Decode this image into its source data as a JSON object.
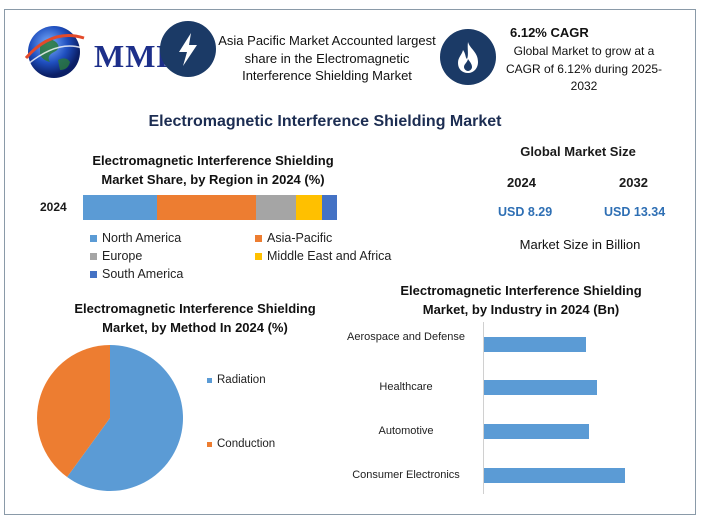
{
  "brand": {
    "logo_text": "MMR"
  },
  "highlights": {
    "region_text": "Asia Pacific Market Accounted largest share in the Electromagnetic Interference Shielding Market",
    "cagr_title": "6.12% CAGR",
    "cagr_text": "Global Market to grow at a CAGR of 6.12% during 2025-2032"
  },
  "main_title": "Electromagnetic Interference Shielding Market",
  "global_market": {
    "title": "Global Market Size",
    "year_a": "2024",
    "year_b": "2032",
    "value_a": "USD 8.29",
    "value_b": "USD 13.34",
    "note": "Market Size in Billion"
  },
  "colors": {
    "blue": "#5b9bd5",
    "orange": "#ed7d31",
    "gray": "#a5a5a5",
    "yellow": "#ffc000",
    "dark_blue": "#4472c4",
    "icon_bg": "#1b3a66"
  },
  "icons": [
    "globe-icon",
    "lightning-icon",
    "flame-icon"
  ],
  "chart_data": [
    {
      "type": "bar",
      "stacked": true,
      "orientation": "horizontal",
      "title": "Electromagnetic Interference Shielding Market Share, by Region in 2024 (%)",
      "categories": [
        "2024"
      ],
      "series": [
        {
          "name": "North America",
          "values": [
            29
          ],
          "color": "#5b9bd5"
        },
        {
          "name": "Asia-Pacific",
          "values": [
            39
          ],
          "color": "#ed7d31"
        },
        {
          "name": "Europe",
          "values": [
            16
          ],
          "color": "#a5a5a5"
        },
        {
          "name": "Middle East and Africa",
          "values": [
            10
          ],
          "color": "#ffc000"
        },
        {
          "name": "South America",
          "values": [
            6
          ],
          "color": "#4472c4"
        }
      ],
      "legend_placement": "bottom"
    },
    {
      "type": "pie",
      "title": "Electromagnetic Interference Shielding Market, by Method In 2024 (%)",
      "labels": [
        "Radiation",
        "Conduction"
      ],
      "values": [
        60,
        40
      ],
      "colors": [
        "#5b9bd5",
        "#ed7d31"
      ],
      "legend_placement": "right"
    },
    {
      "type": "bar",
      "orientation": "horizontal",
      "title": "Electromagnetic Interference Shielding Market, by Industry in 2024 (Bn)",
      "categories": [
        "Aerospace and Defense",
        "Healthcare",
        "Automotive",
        "Consumer Electronics"
      ],
      "values": [
        1.8,
        2.0,
        1.85,
        2.5
      ],
      "xlim": [
        0,
        3.5
      ],
      "color": "#5b9bd5"
    }
  ]
}
